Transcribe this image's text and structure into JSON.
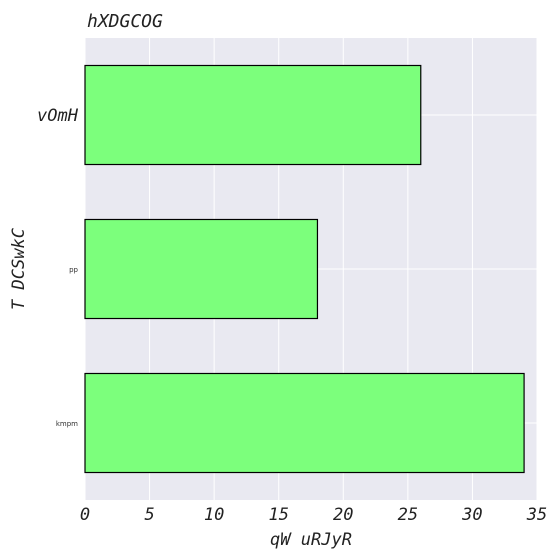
{
  "chart_data": {
    "type": "bar",
    "orientation": "horizontal",
    "title": "hXDGCOG",
    "xlabel": "qW uRJyR",
    "ylabel": "T DCSwkC",
    "categories": [
      "vOmH",
      "pp",
      "kmpm"
    ],
    "values": [
      26,
      18,
      34
    ],
    "xlim": [
      0,
      35
    ],
    "xticks": [
      "0",
      "5",
      "10",
      "15",
      "20",
      "25",
      "30",
      "35"
    ],
    "grid": true,
    "colors": {
      "bar": "#7cff7c",
      "bar_edge": "#000000",
      "plot_background": "#e9e9f1",
      "grid": "#ffffff"
    }
  }
}
